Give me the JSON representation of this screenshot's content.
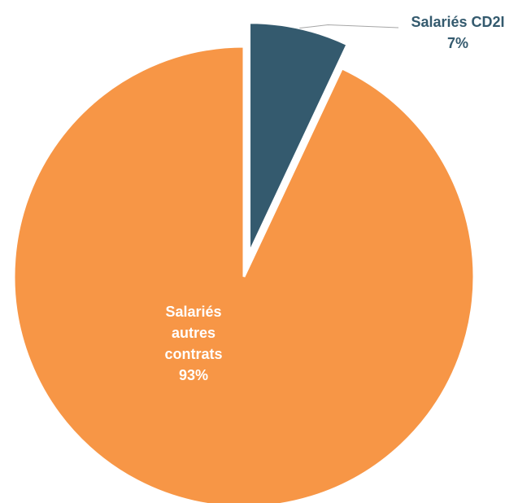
{
  "chart_data": {
    "type": "pie",
    "categories": [
      "Salariés CD2I",
      "Salariés autres contrats"
    ],
    "values": [
      7,
      93
    ],
    "value_labels": [
      "7%",
      "93%"
    ],
    "colors": [
      "#345a6e",
      "#f79646"
    ],
    "exploded": [
      true,
      false
    ]
  }
}
